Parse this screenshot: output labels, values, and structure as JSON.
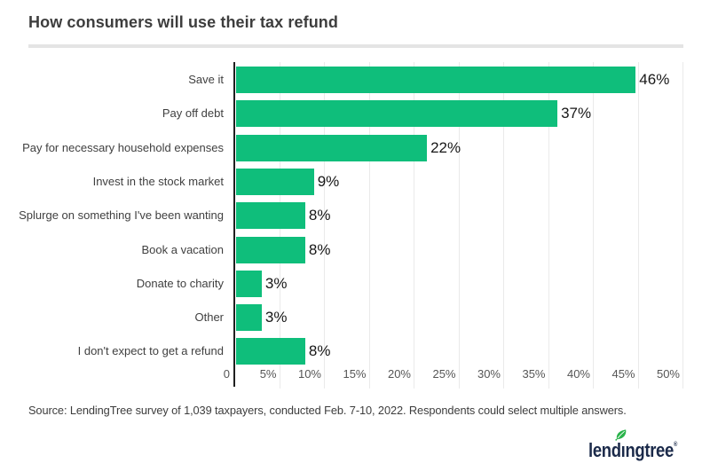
{
  "header": {
    "title": "How consumers will use their tax refund"
  },
  "chart_data": {
    "type": "bar",
    "orientation": "horizontal",
    "title": "How consumers will use their tax refund",
    "categories": [
      "Save it",
      "Pay off debt",
      "Pay for necessary household expenses",
      "Invest in the stock market",
      "Splurge on something I've been wanting",
      "Book a vacation",
      "Donate to charity",
      "Other",
      "I don't expect to get a refund"
    ],
    "values": [
      46,
      37,
      22,
      9,
      8,
      8,
      3,
      3,
      8
    ],
    "value_labels": [
      "46%",
      "37%",
      "22%",
      "9%",
      "8%",
      "8%",
      "3%",
      "3%",
      "8%"
    ],
    "xlim": [
      0,
      50
    ],
    "x_ticks": [
      "0",
      "5%",
      "10%",
      "15%",
      "20%",
      "25%",
      "30%",
      "35%",
      "40%",
      "45%",
      "50%"
    ],
    "grid": true,
    "bar_color": "#0fbe7b",
    "axis_color": "#1f1f1f",
    "grid_color": "#eaeaea"
  },
  "footer": {
    "source": "Source: LendingTree survey of 1,039 taxpayers, conducted Feb. 7-10, 2022. Respondents could select multiple answers.",
    "logo_text": "lendingtree",
    "logo_part_lead": "lend",
    "logo_part_i": "ı",
    "logo_part_tail": "ngtree",
    "logo_mark": "®",
    "logo_navy": "#1b2a4a",
    "logo_leaf_green": "#2ab34b"
  }
}
